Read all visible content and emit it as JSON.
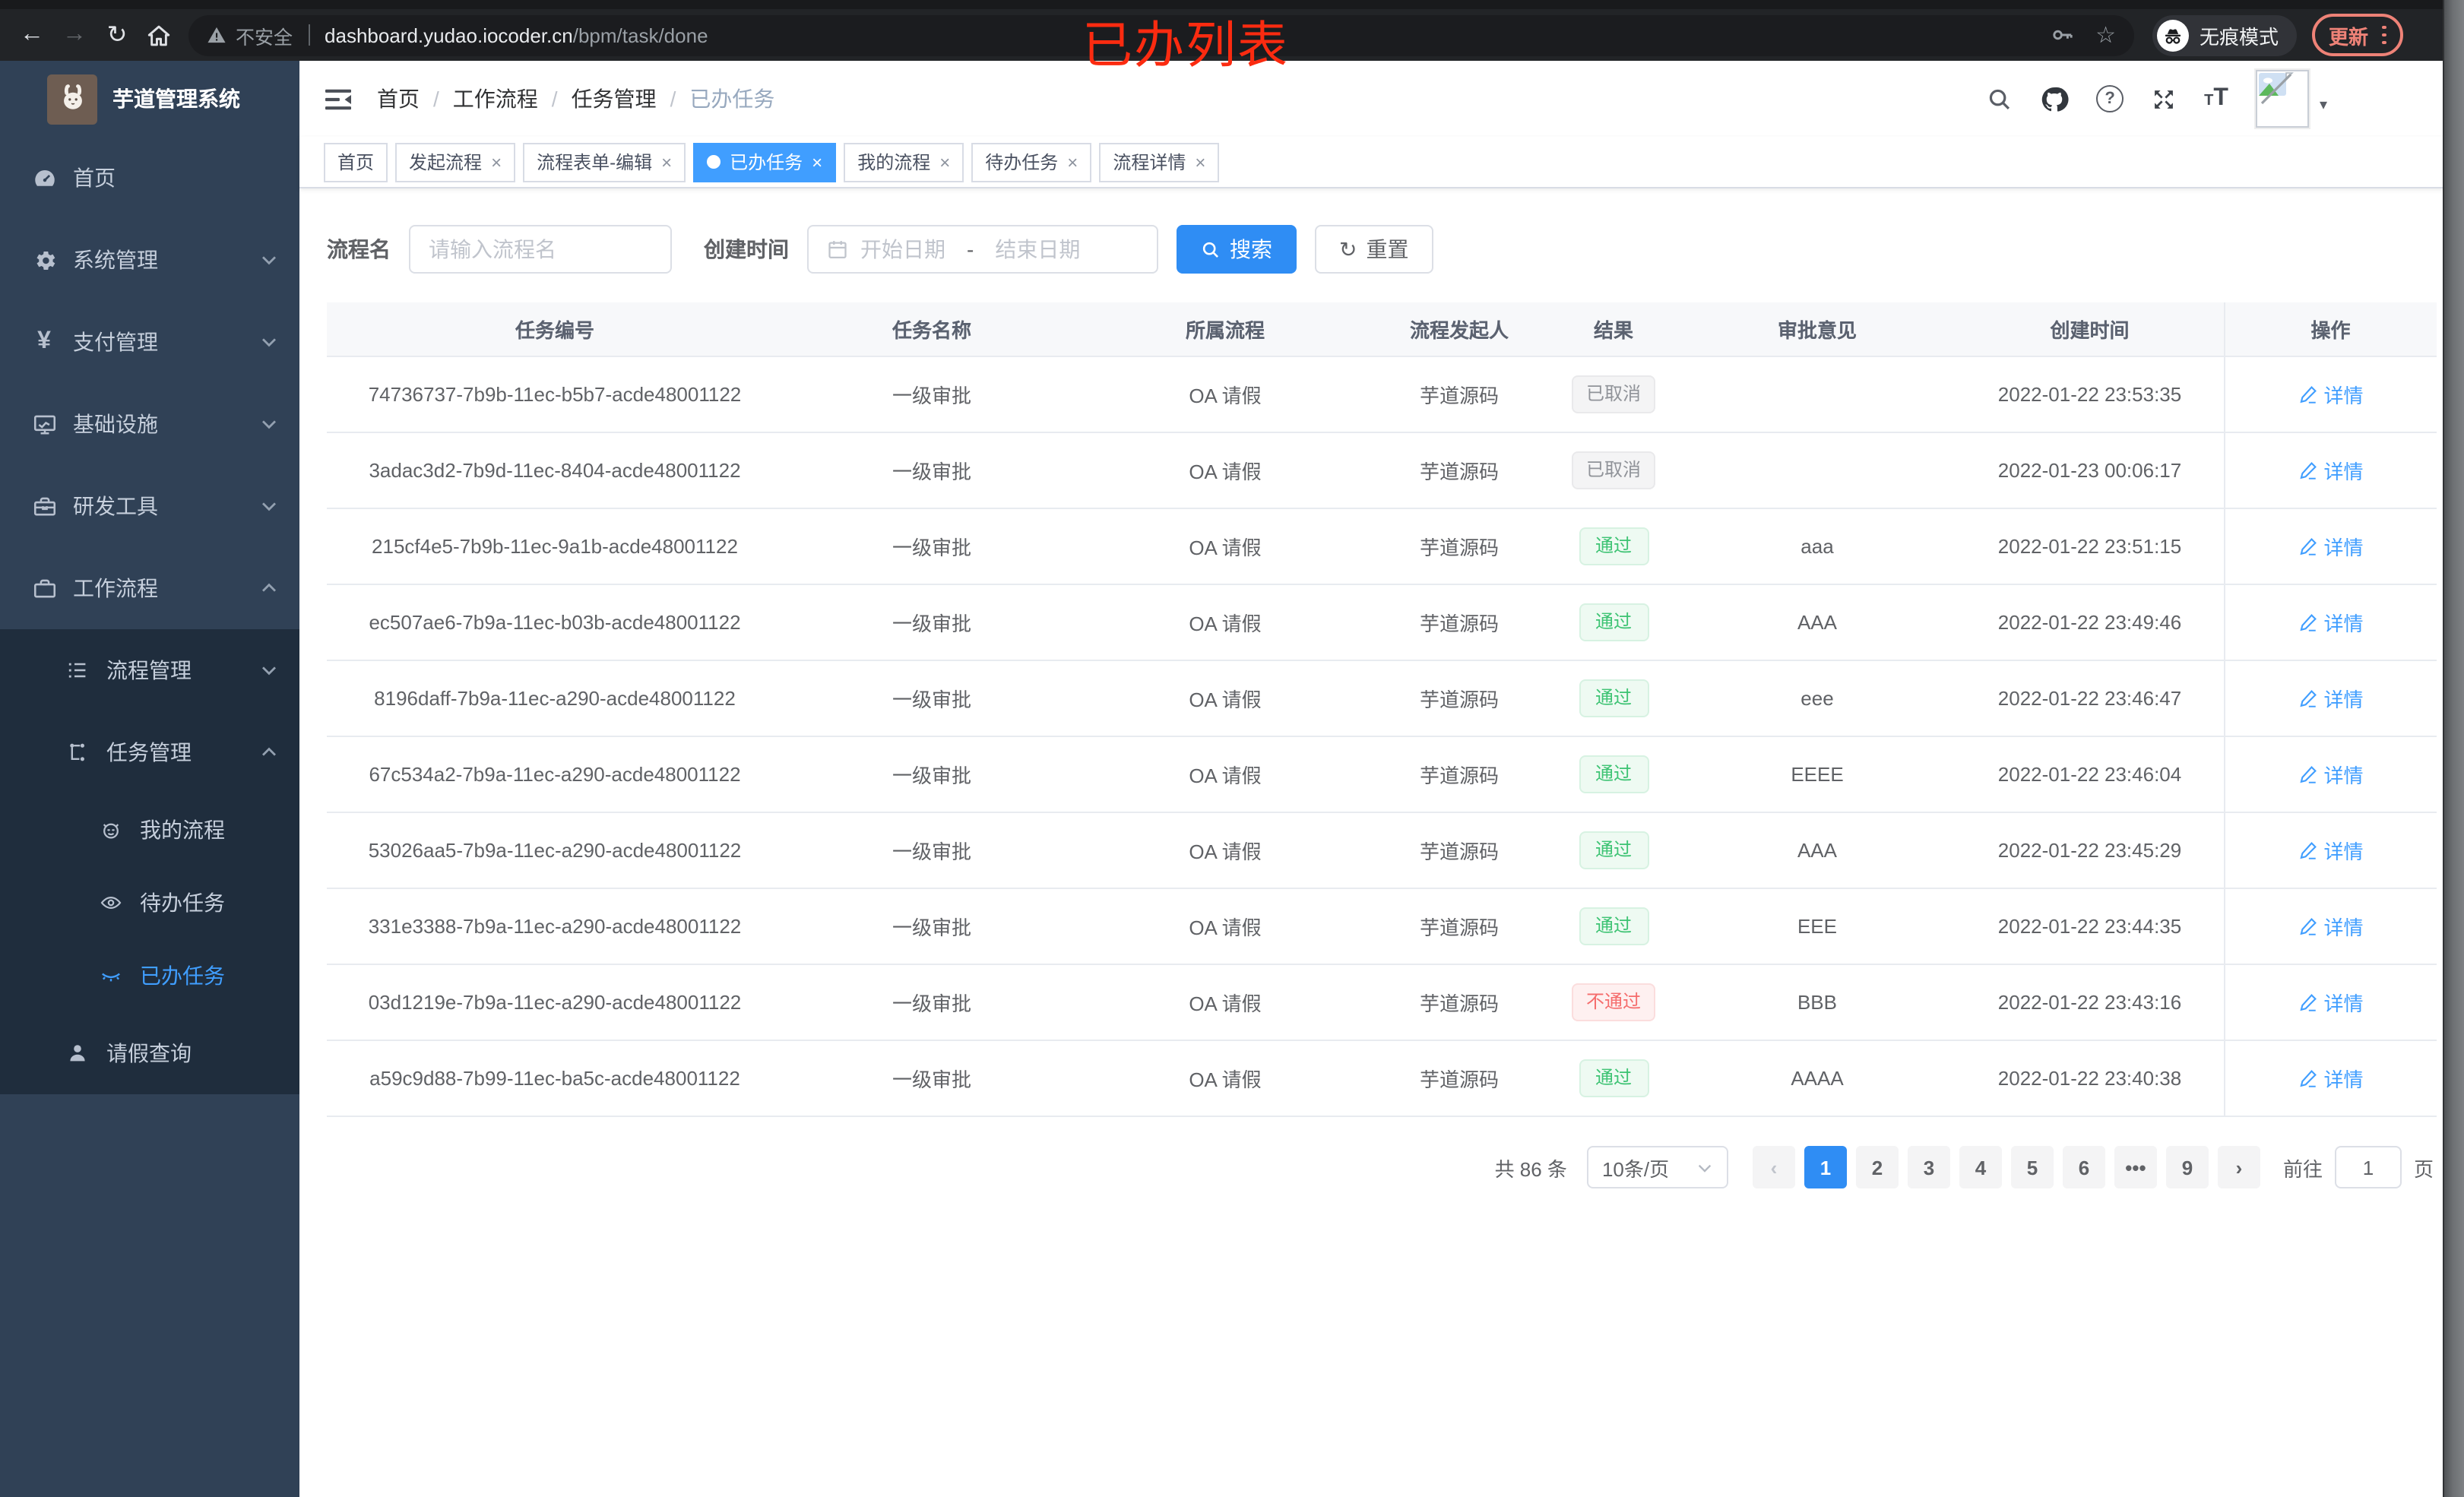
{
  "annotation": {
    "text": "已办列表"
  },
  "browser": {
    "security_label": "不安全",
    "url_host": "dashboard.yudao.iocoder.cn",
    "url_path": "/bpm/task/done",
    "incognito_label": "无痕模式",
    "update_label": "更新"
  },
  "icons": {
    "back": "←",
    "forward": "→",
    "reload": "↻",
    "star": "☆",
    "help": "?",
    "caret_down": "▾",
    "close": "×",
    "prev": "‹",
    "next": "›",
    "reset": "↻",
    "breadcrumb_separator": "/",
    "range_hyphen": "-",
    "fontsize_small": "T",
    "fontsize_big": "T"
  },
  "colors": {
    "accent": "#409eff",
    "success": "#3dc373",
    "danger": "#f56c6c",
    "info": "#909399",
    "annotation_red": "#fb2b10",
    "sidebar_bg": "#304156",
    "submenu_bg": "#1f2d3d"
  },
  "sidebar": {
    "title": "芋道管理系统",
    "items": [
      {
        "label": "首页"
      },
      {
        "label": "系统管理"
      },
      {
        "label": "支付管理"
      },
      {
        "label": "基础设施"
      },
      {
        "label": "研发工具"
      },
      {
        "label": "工作流程"
      },
      {
        "label": "流程管理"
      },
      {
        "label": "任务管理"
      },
      {
        "label": "我的流程"
      },
      {
        "label": "待办任务"
      },
      {
        "label": "已办任务"
      },
      {
        "label": "请假查询"
      }
    ]
  },
  "navbar": {
    "breadcrumb": [
      "首页",
      "工作流程",
      "任务管理",
      "已办任务"
    ]
  },
  "tabs": [
    {
      "label": "首页",
      "closable": false,
      "active": false
    },
    {
      "label": "发起流程",
      "closable": true,
      "active": false
    },
    {
      "label": "流程表单-编辑",
      "closable": true,
      "active": false
    },
    {
      "label": "已办任务",
      "closable": true,
      "active": true
    },
    {
      "label": "我的流程",
      "closable": true,
      "active": false
    },
    {
      "label": "待办任务",
      "closable": true,
      "active": false
    },
    {
      "label": "流程详情",
      "closable": true,
      "active": false
    }
  ],
  "filters": {
    "name_label": "流程名",
    "name_placeholder": "请输入流程名",
    "time_label": "创建时间",
    "start_placeholder": "开始日期",
    "range_separator": "-",
    "end_placeholder": "结束日期",
    "search_label": "搜索",
    "reset_label": "重置"
  },
  "table": {
    "columns": [
      "任务编号",
      "任务名称",
      "所属流程",
      "流程发起人",
      "结果",
      "审批意见",
      "创建时间",
      "操作"
    ],
    "action_label": "详情",
    "rows": [
      {
        "id": "74736737-7b9b-11ec-b5b7-acde48001122",
        "name": "一级审批",
        "process": "OA 请假",
        "starter": "芋道源码",
        "result": "已取消",
        "result_type": "info",
        "comment": "",
        "created": "2022-01-22 23:53:35"
      },
      {
        "id": "3adac3d2-7b9d-11ec-8404-acde48001122",
        "name": "一级审批",
        "process": "OA 请假",
        "starter": "芋道源码",
        "result": "已取消",
        "result_type": "info",
        "comment": "",
        "created": "2022-01-23 00:06:17"
      },
      {
        "id": "215cf4e5-7b9b-11ec-9a1b-acde48001122",
        "name": "一级审批",
        "process": "OA 请假",
        "starter": "芋道源码",
        "result": "通过",
        "result_type": "success",
        "comment": "aaa",
        "created": "2022-01-22 23:51:15"
      },
      {
        "id": "ec507ae6-7b9a-11ec-b03b-acde48001122",
        "name": "一级审批",
        "process": "OA 请假",
        "starter": "芋道源码",
        "result": "通过",
        "result_type": "success",
        "comment": "AAA",
        "created": "2022-01-22 23:49:46"
      },
      {
        "id": "8196daff-7b9a-11ec-a290-acde48001122",
        "name": "一级审批",
        "process": "OA 请假",
        "starter": "芋道源码",
        "result": "通过",
        "result_type": "success",
        "comment": "eee",
        "created": "2022-01-22 23:46:47"
      },
      {
        "id": "67c534a2-7b9a-11ec-a290-acde48001122",
        "name": "一级审批",
        "process": "OA 请假",
        "starter": "芋道源码",
        "result": "通过",
        "result_type": "success",
        "comment": "EEEE",
        "created": "2022-01-22 23:46:04"
      },
      {
        "id": "53026aa5-7b9a-11ec-a290-acde48001122",
        "name": "一级审批",
        "process": "OA 请假",
        "starter": "芋道源码",
        "result": "通过",
        "result_type": "success",
        "comment": "AAA",
        "created": "2022-01-22 23:45:29"
      },
      {
        "id": "331e3388-7b9a-11ec-a290-acde48001122",
        "name": "一级审批",
        "process": "OA 请假",
        "starter": "芋道源码",
        "result": "通过",
        "result_type": "success",
        "comment": "EEE",
        "created": "2022-01-22 23:44:35"
      },
      {
        "id": "03d1219e-7b9a-11ec-a290-acde48001122",
        "name": "一级审批",
        "process": "OA 请假",
        "starter": "芋道源码",
        "result": "不通过",
        "result_type": "danger",
        "comment": "BBB",
        "created": "2022-01-22 23:43:16"
      },
      {
        "id": "a59c9d88-7b99-11ec-ba5c-acde48001122",
        "name": "一级审批",
        "process": "OA 请假",
        "starter": "芋道源码",
        "result": "通过",
        "result_type": "success",
        "comment": "AAAA",
        "created": "2022-01-22 23:40:38"
      }
    ]
  },
  "pagination": {
    "total_label": "共 86 条",
    "page_size_label": "10条/页",
    "pages": [
      {
        "label": "1",
        "active": true
      },
      {
        "label": "2"
      },
      {
        "label": "3"
      },
      {
        "label": "4"
      },
      {
        "label": "5"
      },
      {
        "label": "6"
      },
      {
        "label": "•••",
        "ellipsis": true
      },
      {
        "label": "9"
      }
    ],
    "goto_label": "前往",
    "goto_value": "1",
    "goto_unit": "页"
  }
}
